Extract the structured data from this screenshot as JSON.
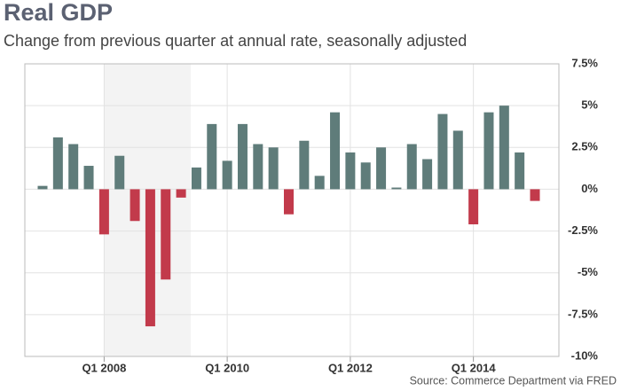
{
  "chart_data": {
    "type": "bar",
    "title": "Real GDP",
    "subtitle": "Change from previous quarter at annual rate, seasonally adjusted",
    "source": "Source: Commerce Department via FRED",
    "categories": [
      null,
      null,
      null,
      null,
      "Q1 2008",
      null,
      null,
      null,
      null,
      null,
      null,
      null,
      "Q1 2010",
      null,
      null,
      null,
      null,
      null,
      null,
      null,
      "Q1 2012",
      null,
      null,
      null,
      null,
      null,
      null,
      null,
      "Q1 2014",
      null,
      null,
      null,
      null
    ],
    "values": [
      0.2,
      3.1,
      2.7,
      1.4,
      -2.7,
      2.0,
      -1.9,
      -8.2,
      -5.4,
      -0.5,
      1.3,
      3.9,
      1.7,
      3.9,
      2.7,
      2.5,
      -1.5,
      2.9,
      0.8,
      4.6,
      2.2,
      1.6,
      2.5,
      0.1,
      2.7,
      1.8,
      4.5,
      3.5,
      -2.1,
      4.6,
      5.0,
      2.2,
      -0.7
    ],
    "color_positive": "#5f7c7a",
    "color_negative": "#c23a4b",
    "ylim": [
      -10,
      7.5
    ],
    "yticks": [
      {
        "value": 7.5,
        "label": "7.5%"
      },
      {
        "value": 5,
        "label": "5%"
      },
      {
        "value": 2.5,
        "label": "2.5%"
      },
      {
        "value": 0,
        "label": "0%"
      },
      {
        "value": -2.5,
        "label": "-2.5%"
      },
      {
        "value": -5,
        "label": "-5%"
      },
      {
        "value": -7.5,
        "label": "-7.5%"
      },
      {
        "value": -10,
        "label": "-10%"
      }
    ],
    "grid": true
  }
}
